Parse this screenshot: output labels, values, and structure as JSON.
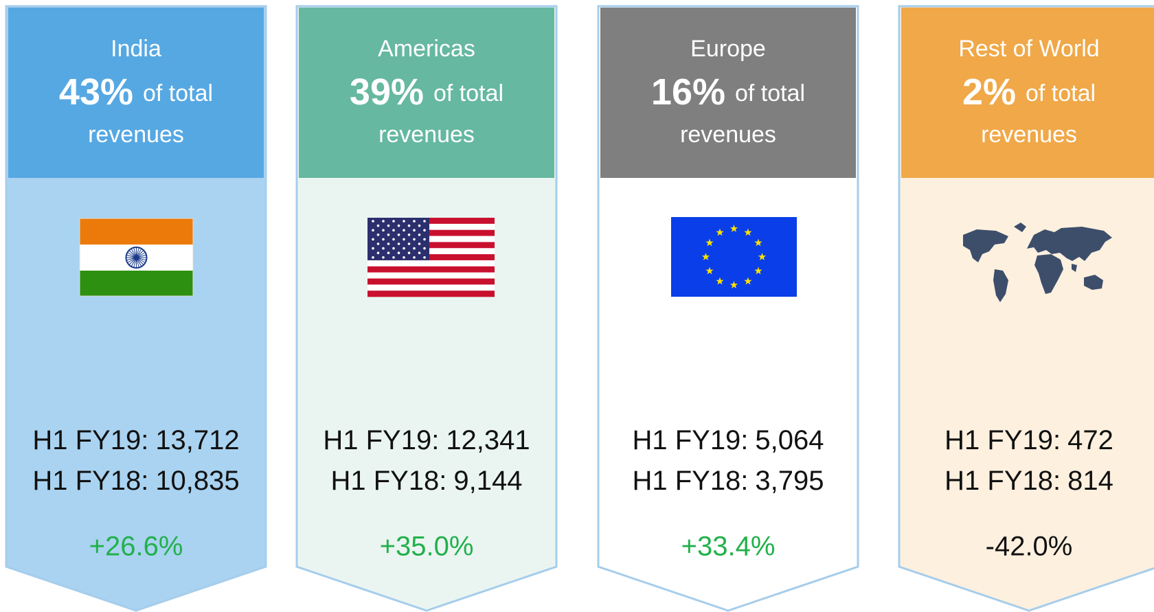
{
  "cards": [
    {
      "region": "India",
      "share": "43%",
      "share_note": "of total",
      "share_note_2": "revenues",
      "fy19_label": "H1 FY19:",
      "fy19": "13,712",
      "fy18_label": "H1 FY18:",
      "fy18": "10,835",
      "growth": "+26.6%"
    },
    {
      "region": "Americas",
      "share": "39%",
      "share_note": "of total",
      "share_note_2": "revenues",
      "fy19_label": "H1 FY19:",
      "fy19": "12,341",
      "fy18_label": "H1 FY18:",
      "fy18": "9,144",
      "growth": "+35.0%"
    },
    {
      "region": "Europe",
      "share": "16%",
      "share_note": "of total",
      "share_note_2": "revenues",
      "fy19_label": "H1 FY19:",
      "fy19": "5,064",
      "fy18_label": "H1 FY18:",
      "fy18": "3,795",
      "growth": "+33.4%"
    },
    {
      "region": "Rest of World",
      "share": "2%",
      "share_note": "of total",
      "share_note_2": "revenues",
      "fy19_label": "H1 FY19:",
      "fy19": "472",
      "fy18_label": "H1 FY18:",
      "fy18": "814",
      "growth": "-42.0%"
    }
  ]
}
